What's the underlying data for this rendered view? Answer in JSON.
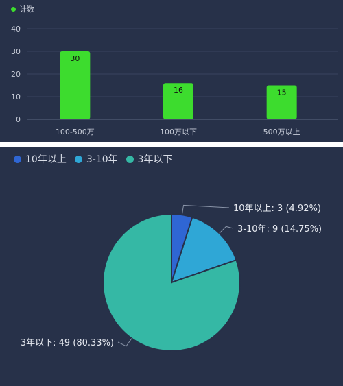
{
  "chart_data": [
    {
      "type": "bar",
      "legend": "计数",
      "legend_placement": "top-left",
      "categories": [
        "100-500万",
        "100万以下",
        "500万以上"
      ],
      "values": [
        30,
        16,
        15
      ],
      "ylim": [
        0,
        40
      ],
      "yticks": [
        0,
        10,
        20,
        30,
        40
      ],
      "grid": true,
      "bar_color": "#3ddc2e",
      "background": "#273149"
    },
    {
      "type": "pie",
      "legend_placement": "top-left",
      "labels": [
        "10年以上",
        "3-10年",
        "3年以下"
      ],
      "values": [
        3,
        9,
        49
      ],
      "percents": [
        "4.92%",
        "14.75%",
        "80.33%"
      ],
      "slice_labels": [
        "10年以上: 3 (4.92%)",
        "3-10年: 9 (14.75%)",
        "3年以下: 49 (80.33%)"
      ],
      "colors": [
        "#2f66d4",
        "#2fa7d6",
        "#35b8a5"
      ],
      "background": "#273149"
    }
  ]
}
